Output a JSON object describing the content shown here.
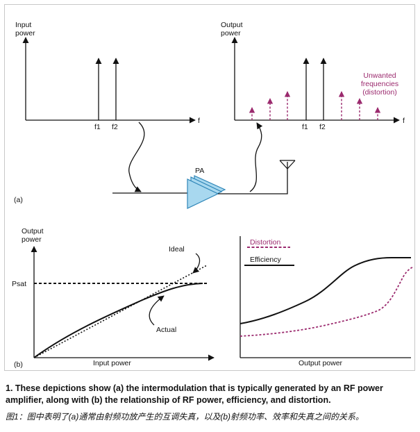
{
  "figure": {
    "panel_a": {
      "label": "(a)",
      "input_axis_label_line1": "Input",
      "input_axis_label_line2": "power",
      "output_axis_label_line1": "Output",
      "output_axis_label_line2": "power",
      "f_axis": "f",
      "f1": "f1",
      "f2": "f2",
      "unwanted_line1": "Unwanted",
      "unwanted_line2": "frequencies",
      "unwanted_line3": "(distortion)",
      "amplifier_label": "PA"
    },
    "panel_b": {
      "label": "(b)",
      "y_label_line1": "Output",
      "y_label_line2": "power",
      "psat": "Psat",
      "ideal": "Ideal",
      "actual": "Actual",
      "x_left": "Input power",
      "x_right": "Output power",
      "legend_distortion": "Distortion",
      "legend_efficiency": "Efficiency"
    },
    "colors": {
      "distortion": "#9b2a6e",
      "amplifier_fill": "#a8d8ef",
      "amplifier_stroke": "#2f86b8"
    }
  },
  "caption": {
    "english": "1. These depictions show (a) the intermodulation that is typically generated by an RF power amplifier, along with (b) the relationship of RF power, efficiency, and distortion.",
    "chinese": "图1：图中表明了(a)通常由射频功放产生的互调失真，以及(b)射频功率、效率和失真之间的关系。"
  }
}
